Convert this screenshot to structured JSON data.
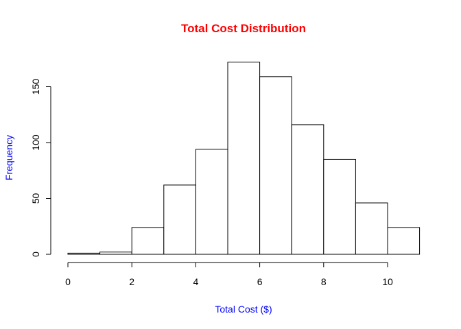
{
  "chart_data": {
    "type": "bar",
    "subtype": "histogram",
    "title": "Total Cost Distribution",
    "xlabel": "Total Cost ($)",
    "ylabel": "Frequency",
    "bin_edges": [
      0,
      1,
      2,
      3,
      4,
      5,
      6,
      7,
      8,
      9,
      10,
      11
    ],
    "values": [
      1,
      2,
      24,
      62,
      94,
      172,
      159,
      116,
      85,
      46,
      24
    ],
    "xlim": [
      0,
      11
    ],
    "ylim": [
      0,
      172
    ],
    "x_ticks": [
      0,
      2,
      4,
      6,
      8,
      10
    ],
    "y_ticks": [
      0,
      50,
      100,
      150
    ],
    "grid": false,
    "legend": "none",
    "colors": {
      "title": "#ff0000",
      "axis_labels": "#0000ff",
      "bar_fill": "#ffffff",
      "bar_stroke": "#000000"
    }
  }
}
